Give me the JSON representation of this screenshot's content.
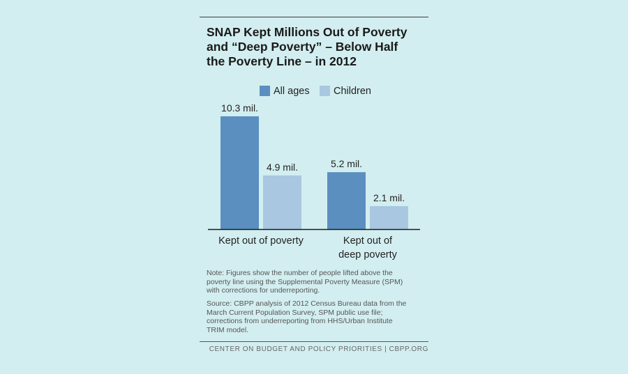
{
  "title_lines": [
    "SNAP Kept Millions Out of Poverty",
    "and “Deep Poverty” – Below Half",
    "the Poverty Line – in 2012"
  ],
  "colors": {
    "all_ages": "#5a8fc0",
    "children": "#a9c7e0",
    "axis": "#1a1a1a"
  },
  "chart_data": {
    "type": "bar",
    "title": "SNAP Kept Millions Out of Poverty and “Deep Poverty” – Below Half the Poverty Line – in 2012",
    "categories": [
      {
        "lines": [
          "Kept out of poverty"
        ]
      },
      {
        "lines": [
          "Kept out of",
          "deep poverty"
        ]
      }
    ],
    "series": [
      {
        "name": "All ages",
        "values": [
          10.3,
          5.2
        ],
        "labels": [
          "10.3 mil.",
          "5.2 mil."
        ]
      },
      {
        "name": "Children",
        "values": [
          4.9,
          2.1
        ],
        "labels": [
          "4.9 mil.",
          "2.1 mil."
        ]
      }
    ],
    "unit": "millions of people",
    "ylim": [
      0,
      10.3
    ],
    "grid": false,
    "legend": "top-center"
  },
  "note_lines": [
    "Note: Figures show the number of people lifted above the",
    "poverty line using the Supplemental Poverty Measure (SPM)",
    "with corrections for underreporting."
  ],
  "source_lines": [
    "Source: CBPP analysis of 2012 Census Bureau data from the",
    "March Current Population Survey, SPM public use file;",
    "corrections from underreporting from HHS/Urban Institute",
    "TRIM model."
  ],
  "footer": "CENTER ON BUDGET AND POLICY PRIORITIES | CBPP.ORG"
}
